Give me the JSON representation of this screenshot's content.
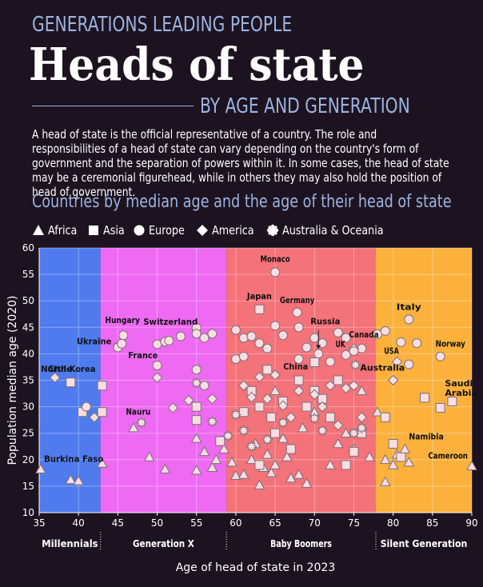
{
  "header": {
    "supertitle": "GENERATIONS LEADING PEOPLE",
    "title": "Heads of state",
    "subtitle": "BY AGE AND GENERATION",
    "description": "A head of state is the official representative of a country. The role and responsibilities of a head of state can vary depending on the country's form of government and the separation of powers within it. In some cases, the head of state may be a ceremonial figurehead, while in others they may also hold the position of head of government.",
    "section_title": "Countries by median age and the age of their head of state"
  },
  "legend": [
    {
      "label": "Africa",
      "shape": "triangle"
    },
    {
      "label": "Asia",
      "shape": "square"
    },
    {
      "label": "Europe",
      "shape": "circle"
    },
    {
      "label": "America",
      "shape": "diamond"
    },
    {
      "label": "Australia & Oceania",
      "shape": "burst"
    }
  ],
  "colors": {
    "background": "#1d1320",
    "millennials": "#4f7bef",
    "generation_x": "#ee6af3",
    "baby_boomers": "#f4727a",
    "silent_generation": "#fbb13c",
    "marker_fill": "#f9dde3",
    "marker_stroke": "#7a6f78",
    "accent_text": "#9db3e0"
  },
  "chart_data": {
    "type": "scatter",
    "xlabel": "Age of head of state in 2023",
    "ylabel": "Population median age (2020)",
    "xlim": [
      35,
      90
    ],
    "ylim": [
      10,
      60
    ],
    "x_ticks": [
      35,
      40,
      45,
      50,
      55,
      60,
      65,
      70,
      75,
      80,
      85,
      90
    ],
    "y_ticks": [
      10,
      15,
      20,
      25,
      30,
      35,
      40,
      45,
      50,
      55,
      60
    ],
    "grid": true,
    "generations": [
      {
        "name": "Millennials",
        "from": 35,
        "to": 42.8,
        "color": "#4f7bef"
      },
      {
        "name": "Generation X",
        "from": 42.8,
        "to": 58.8,
        "color": "#ee6af3"
      },
      {
        "name": "Baby Boomers",
        "from": 58.8,
        "to": 77.8,
        "color": "#f4727a"
      },
      {
        "name": "Silent Generation",
        "from": 77.8,
        "to": 90,
        "color": "#fbb13c"
      }
    ],
    "labeled_points": [
      {
        "country": "Monaco",
        "x": 65,
        "y": 55.4,
        "region": "Europe"
      },
      {
        "country": "Japan",
        "x": 63,
        "y": 48.4,
        "region": "Asia"
      },
      {
        "country": "Germany",
        "x": 67.8,
        "y": 47.8,
        "region": "Europe"
      },
      {
        "country": "Italy",
        "x": 82,
        "y": 46.5,
        "region": "Europe"
      },
      {
        "country": "Russia",
        "x": 70.5,
        "y": 40,
        "region": "Europe"
      },
      {
        "country": "Hungary",
        "x": 45.7,
        "y": 43.5,
        "region": "Europe"
      },
      {
        "country": "Switzerland",
        "x": 51.5,
        "y": 42.5,
        "region": "Europe"
      },
      {
        "country": "Ukraine",
        "x": 45,
        "y": 41.2,
        "region": "Europe"
      },
      {
        "country": "France",
        "x": 45.5,
        "y": 41.9,
        "region": "Europe"
      },
      {
        "country": "Canada",
        "x": 75,
        "y": 41,
        "region": "America"
      },
      {
        "country": "UK",
        "x": 75,
        "y": 40.5,
        "region": "Europe"
      },
      {
        "country": "Norway",
        "x": 86,
        "y": 39.5,
        "region": "Europe"
      },
      {
        "country": "USA",
        "x": 80.5,
        "y": 38.5,
        "region": "America"
      },
      {
        "country": "China",
        "x": 70,
        "y": 38.4,
        "region": "Asia"
      },
      {
        "country": "Australia",
        "x": 75.2,
        "y": 37.9,
        "region": "Australia & Oceania"
      },
      {
        "country": "Chile",
        "x": 37,
        "y": 35.5,
        "region": "America"
      },
      {
        "country": "North Korea",
        "x": 39,
        "y": 34.6,
        "region": "Asia"
      },
      {
        "country": "Saudi Arabia",
        "x": 87.5,
        "y": 31,
        "region": "Asia"
      },
      {
        "country": "Nauru",
        "x": 48,
        "y": 27,
        "region": "Australia & Oceania"
      },
      {
        "country": "Namibia",
        "x": 81.5,
        "y": 22,
        "region": "Africa"
      },
      {
        "country": "Burkina Faso",
        "x": 35.2,
        "y": 18.2,
        "region": "Africa"
      },
      {
        "country": "Cameroon",
        "x": 90,
        "y": 18.8,
        "region": "Africa"
      }
    ],
    "points": [
      {
        "region": "Africa",
        "x": 39,
        "y": 16.2
      },
      {
        "region": "Africa",
        "x": 40,
        "y": 16
      },
      {
        "region": "Africa",
        "x": 43,
        "y": 19.3
      },
      {
        "region": "Africa",
        "x": 47,
        "y": 26
      },
      {
        "region": "Africa",
        "x": 49,
        "y": 20.5
      },
      {
        "region": "Africa",
        "x": 51,
        "y": 18.2
      },
      {
        "region": "Africa",
        "x": 55,
        "y": 24
      },
      {
        "region": "Africa",
        "x": 55,
        "y": 18
      },
      {
        "region": "Africa",
        "x": 56,
        "y": 21.5
      },
      {
        "region": "Africa",
        "x": 57,
        "y": 18.5
      },
      {
        "region": "Africa",
        "x": 57.5,
        "y": 20
      },
      {
        "region": "Africa",
        "x": 58.5,
        "y": 22
      },
      {
        "region": "Africa",
        "x": 59.5,
        "y": 19.5
      },
      {
        "region": "Africa",
        "x": 60,
        "y": 17
      },
      {
        "region": "Africa",
        "x": 61,
        "y": 17.2
      },
      {
        "region": "Africa",
        "x": 62,
        "y": 20
      },
      {
        "region": "Africa",
        "x": 62.5,
        "y": 23
      },
      {
        "region": "Africa",
        "x": 63,
        "y": 15.2
      },
      {
        "region": "Africa",
        "x": 63.5,
        "y": 18.5
      },
      {
        "region": "Africa",
        "x": 64,
        "y": 21
      },
      {
        "region": "Africa",
        "x": 64.5,
        "y": 17.5
      },
      {
        "region": "Africa",
        "x": 65,
        "y": 19
      },
      {
        "region": "Africa",
        "x": 65,
        "y": 33
      },
      {
        "region": "Africa",
        "x": 66,
        "y": 24
      },
      {
        "region": "Africa",
        "x": 66.5,
        "y": 20.5
      },
      {
        "region": "Africa",
        "x": 67,
        "y": 16.5
      },
      {
        "region": "Africa",
        "x": 68,
        "y": 17.2
      },
      {
        "region": "Africa",
        "x": 68.5,
        "y": 26
      },
      {
        "region": "Africa",
        "x": 69,
        "y": 15.5
      },
      {
        "region": "Africa",
        "x": 70,
        "y": 29
      },
      {
        "region": "Africa",
        "x": 72,
        "y": 19
      },
      {
        "region": "Africa",
        "x": 73,
        "y": 23
      },
      {
        "region": "Africa",
        "x": 74,
        "y": 25
      },
      {
        "region": "Africa",
        "x": 75,
        "y": 22
      },
      {
        "region": "Africa",
        "x": 76,
        "y": 33
      },
      {
        "region": "Africa",
        "x": 77,
        "y": 20.5
      },
      {
        "region": "Africa",
        "x": 78,
        "y": 29
      },
      {
        "region": "Africa",
        "x": 79,
        "y": 20
      },
      {
        "region": "Africa",
        "x": 79,
        "y": 15.8
      },
      {
        "region": "Africa",
        "x": 80,
        "y": 19
      },
      {
        "region": "Africa",
        "x": 80.5,
        "y": 21
      },
      {
        "region": "Africa",
        "x": 82,
        "y": 19.5
      },
      {
        "region": "Asia",
        "x": 40.5,
        "y": 29
      },
      {
        "region": "Asia",
        "x": 43,
        "y": 34
      },
      {
        "region": "Asia",
        "x": 43,
        "y": 29
      },
      {
        "region": "Asia",
        "x": 55,
        "y": 30
      },
      {
        "region": "Asia",
        "x": 55,
        "y": 27.5
      },
      {
        "region": "Asia",
        "x": 58,
        "y": 23.5
      },
      {
        "region": "Asia",
        "x": 61,
        "y": 29
      },
      {
        "region": "Asia",
        "x": 62,
        "y": 33
      },
      {
        "region": "Asia",
        "x": 63,
        "y": 30
      },
      {
        "region": "Asia",
        "x": 63,
        "y": 19
      },
      {
        "region": "Asia",
        "x": 64,
        "y": 37
      },
      {
        "region": "Asia",
        "x": 64.5,
        "y": 28
      },
      {
        "region": "Asia",
        "x": 65,
        "y": 25
      },
      {
        "region": "Asia",
        "x": 66,
        "y": 31
      },
      {
        "region": "Asia",
        "x": 67,
        "y": 22
      },
      {
        "region": "Asia",
        "x": 68,
        "y": 35
      },
      {
        "region": "Asia",
        "x": 69,
        "y": 30
      },
      {
        "region": "Asia",
        "x": 70,
        "y": 33
      },
      {
        "region": "Asia",
        "x": 71,
        "y": 31.5
      },
      {
        "region": "Asia",
        "x": 72,
        "y": 28
      },
      {
        "region": "Asia",
        "x": 73,
        "y": 35
      },
      {
        "region": "Asia",
        "x": 74,
        "y": 19
      },
      {
        "region": "Asia",
        "x": 75,
        "y": 21.5
      },
      {
        "region": "Asia",
        "x": 76,
        "y": 25
      },
      {
        "region": "Asia",
        "x": 79,
        "y": 28
      },
      {
        "region": "Asia",
        "x": 80,
        "y": 23
      },
      {
        "region": "Asia",
        "x": 81,
        "y": 20.5
      },
      {
        "region": "Asia",
        "x": 84,
        "y": 31.7
      },
      {
        "region": "Asia",
        "x": 86,
        "y": 29.8
      },
      {
        "region": "Europe",
        "x": 41,
        "y": 30
      },
      {
        "region": "Europe",
        "x": 45,
        "y": 41.3
      },
      {
        "region": "Europe",
        "x": 50,
        "y": 41.8
      },
      {
        "region": "Europe",
        "x": 51,
        "y": 42.3
      },
      {
        "region": "Europe",
        "x": 53,
        "y": 43.3
      },
      {
        "region": "Europe",
        "x": 55,
        "y": 44.9
      },
      {
        "region": "Europe",
        "x": 55,
        "y": 43.8
      },
      {
        "region": "Europe",
        "x": 56,
        "y": 43
      },
      {
        "region": "Europe",
        "x": 57,
        "y": 43.8
      },
      {
        "region": "Europe",
        "x": 60,
        "y": 44.5
      },
      {
        "region": "Europe",
        "x": 61,
        "y": 43
      },
      {
        "region": "Europe",
        "x": 62,
        "y": 43.3
      },
      {
        "region": "Europe",
        "x": 63,
        "y": 42
      },
      {
        "region": "Europe",
        "x": 64,
        "y": 41
      },
      {
        "region": "Europe",
        "x": 65,
        "y": 45.3
      },
      {
        "region": "Europe",
        "x": 66,
        "y": 43.5
      },
      {
        "region": "Europe",
        "x": 68,
        "y": 45
      },
      {
        "region": "Europe",
        "x": 69,
        "y": 41.2
      },
      {
        "region": "Europe",
        "x": 70,
        "y": 43
      },
      {
        "region": "Europe",
        "x": 71,
        "y": 42
      },
      {
        "region": "Europe",
        "x": 73,
        "y": 44
      },
      {
        "region": "Europe",
        "x": 74,
        "y": 43
      },
      {
        "region": "Europe",
        "x": 76,
        "y": 41
      },
      {
        "region": "Europe",
        "x": 78,
        "y": 43.7
      },
      {
        "region": "Europe",
        "x": 79,
        "y": 44.3
      },
      {
        "region": "Europe",
        "x": 81,
        "y": 42.2
      },
      {
        "region": "Europe",
        "x": 83,
        "y": 42
      },
      {
        "region": "Europe",
        "x": 50,
        "y": 37.8
      },
      {
        "region": "Europe",
        "x": 55,
        "y": 37
      },
      {
        "region": "Europe",
        "x": 56,
        "y": 34
      },
      {
        "region": "Europe",
        "x": 60,
        "y": 39
      },
      {
        "region": "Europe",
        "x": 61,
        "y": 39.5
      },
      {
        "region": "Europe",
        "x": 68,
        "y": 39
      },
      {
        "region": "Europe",
        "x": 72,
        "y": 38.5
      },
      {
        "region": "Europe",
        "x": 74,
        "y": 39.8
      },
      {
        "region": "Europe",
        "x": 82,
        "y": 38
      },
      {
        "region": "America",
        "x": 42,
        "y": 28
      },
      {
        "region": "America",
        "x": 50,
        "y": 35.5
      },
      {
        "region": "America",
        "x": 52,
        "y": 29.8
      },
      {
        "region": "America",
        "x": 54,
        "y": 31.2
      },
      {
        "region": "America",
        "x": 57,
        "y": 31.5
      },
      {
        "region": "America",
        "x": 61,
        "y": 34
      },
      {
        "region": "America",
        "x": 62,
        "y": 31.8
      },
      {
        "region": "America",
        "x": 63,
        "y": 35.6
      },
      {
        "region": "America",
        "x": 64,
        "y": 31.5
      },
      {
        "region": "America",
        "x": 65,
        "y": 36
      },
      {
        "region": "America",
        "x": 66,
        "y": 30.2
      },
      {
        "region": "America",
        "x": 67,
        "y": 28
      },
      {
        "region": "America",
        "x": 68,
        "y": 33
      },
      {
        "region": "America",
        "x": 70,
        "y": 32.3
      },
      {
        "region": "America",
        "x": 71,
        "y": 30
      },
      {
        "region": "America",
        "x": 72,
        "y": 34
      },
      {
        "region": "America",
        "x": 73,
        "y": 26.5
      },
      {
        "region": "America",
        "x": 74,
        "y": 33.5
      },
      {
        "region": "America",
        "x": 75,
        "y": 34
      },
      {
        "region": "America",
        "x": 76,
        "y": 28
      },
      {
        "region": "America",
        "x": 80,
        "y": 35
      },
      {
        "region": "Australia & Oceania",
        "x": 55,
        "y": 34.5
      },
      {
        "region": "Australia & Oceania",
        "x": 57,
        "y": 27.2
      },
      {
        "region": "Australia & Oceania",
        "x": 59,
        "y": 24.5
      },
      {
        "region": "Australia & Oceania",
        "x": 60,
        "y": 28.5
      },
      {
        "region": "Australia & Oceania",
        "x": 61,
        "y": 25.5
      },
      {
        "region": "Australia & Oceania",
        "x": 62,
        "y": 22.5
      },
      {
        "region": "Australia & Oceania",
        "x": 64,
        "y": 23.8
      },
      {
        "region": "Australia & Oceania",
        "x": 66,
        "y": 27
      },
      {
        "region": "Australia & Oceania",
        "x": 70,
        "y": 27.8
      },
      {
        "region": "Australia & Oceania",
        "x": 71,
        "y": 25.5
      },
      {
        "region": "Australia & Oceania",
        "x": 75,
        "y": 25
      },
      {
        "region": "Australia & Oceania",
        "x": 76,
        "y": 26
      }
    ]
  }
}
